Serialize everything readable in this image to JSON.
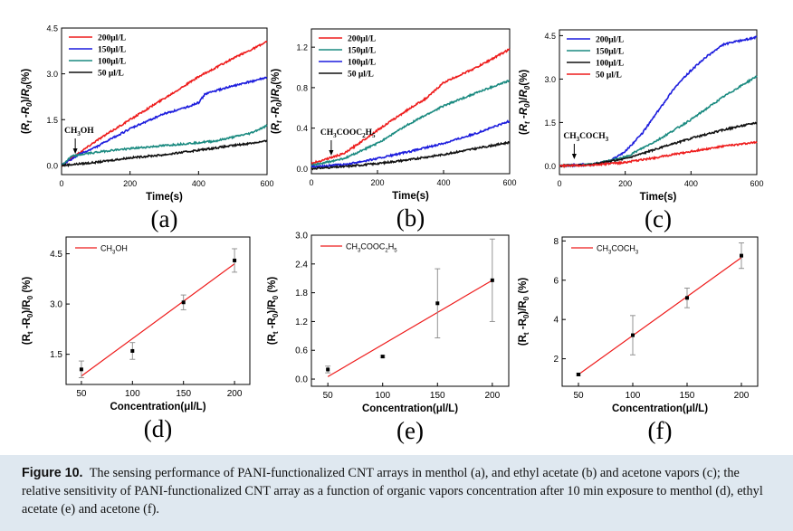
{
  "figure": {
    "caption_label": "Figure 10.",
    "caption_text": "The sensing performance of PANI-functionalized CNT arrays in menthol (a), and ethyl acetate (b) and acetone vapors (c); the relative sensitivity of PANI-functionalized CNT array as a function of organic vapors concentration after 10 min exposure to menthol (d), ethyl acetate (e) and acetone (f)."
  },
  "chart_data": [
    {
      "panel": "(a)",
      "type": "line",
      "xlabel": "Time(s)",
      "ylabel": "(Rt -R0)/R0(%)",
      "xlim": [
        0,
        600
      ],
      "ylim": [
        -0.3,
        4.5
      ],
      "xticks": [
        0,
        200,
        400,
        600
      ],
      "yticks": [
        0.0,
        1.5,
        3.0,
        4.5
      ],
      "annotation": {
        "text": "CH3OH",
        "x": 40,
        "y": 0.35
      },
      "legend": "top-left",
      "series": [
        {
          "name": "200μl/L",
          "color": "#ee1c1c",
          "x": [
            0,
            50,
            100,
            200,
            300,
            400,
            500,
            600
          ],
          "y": [
            0.0,
            0.4,
            0.8,
            1.5,
            2.2,
            2.9,
            3.5,
            4.05
          ]
        },
        {
          "name": "150μl/L",
          "color": "#1c1cdd",
          "x": [
            0,
            50,
            100,
            200,
            300,
            350,
            400,
            420,
            500,
            600
          ],
          "y": [
            0.0,
            0.35,
            0.6,
            1.2,
            1.7,
            1.85,
            2.05,
            2.35,
            2.6,
            2.88
          ]
        },
        {
          "name": "100μl/L",
          "color": "#1a8a80",
          "x": [
            0,
            30,
            80,
            150,
            300,
            450,
            550,
            600
          ],
          "y": [
            0.0,
            0.3,
            0.4,
            0.5,
            0.65,
            0.8,
            1.05,
            1.3
          ]
        },
        {
          "name": "50 μl/L",
          "color": "#111111",
          "x": [
            0,
            100,
            200,
            300,
            400,
            500,
            600
          ],
          "y": [
            0.0,
            0.1,
            0.25,
            0.35,
            0.5,
            0.65,
            0.8
          ]
        }
      ]
    },
    {
      "panel": "(b)",
      "type": "line",
      "xlabel": "Time(s)",
      "ylabel": "(Rt -R0)/R0(%)",
      "xlim": [
        0,
        600
      ],
      "ylim": [
        -0.05,
        1.38
      ],
      "xticks": [
        0,
        200,
        400,
        600
      ],
      "yticks": [
        0.0,
        0.4,
        0.8,
        1.2
      ],
      "annotation": {
        "text": "CH3COOC2H5",
        "x": 60,
        "y": 0.12
      },
      "legend": "top-left",
      "series": [
        {
          "name": "200μl/L",
          "color": "#ee1c1c",
          "x": [
            0,
            100,
            200,
            300,
            350,
            400,
            500,
            600
          ],
          "y": [
            0.05,
            0.15,
            0.38,
            0.6,
            0.7,
            0.85,
            1.0,
            1.18
          ]
        },
        {
          "name": "150μl/L",
          "color": "#1a8a80",
          "x": [
            0,
            100,
            200,
            300,
            400,
            500,
            600
          ],
          "y": [
            0.03,
            0.1,
            0.25,
            0.45,
            0.62,
            0.75,
            0.87
          ]
        },
        {
          "name": "100μl/L",
          "color": "#1c1cdd",
          "x": [
            0,
            100,
            200,
            300,
            400,
            500,
            600
          ],
          "y": [
            0.02,
            0.04,
            0.1,
            0.17,
            0.25,
            0.35,
            0.47
          ]
        },
        {
          "name": "50 μl/L",
          "color": "#111111",
          "x": [
            0,
            100,
            200,
            300,
            400,
            500,
            600
          ],
          "y": [
            0.0,
            0.02,
            0.05,
            0.09,
            0.14,
            0.2,
            0.26
          ]
        }
      ]
    },
    {
      "panel": "(c)",
      "type": "line",
      "xlabel": "Time(s)",
      "ylabel": "(Rt -R0)/R0(%)",
      "xlim": [
        0,
        600
      ],
      "ylim": [
        -0.3,
        4.7
      ],
      "xticks": [
        0,
        200,
        400,
        600
      ],
      "yticks": [
        0.0,
        1.5,
        3.0,
        4.5
      ],
      "annotation": {
        "text": "CH3COCH3",
        "x": 45,
        "y": 0.2
      },
      "legend": "top-left",
      "series": [
        {
          "name": "200μl/L",
          "color": "#1c1cdd",
          "x": [
            0,
            100,
            150,
            200,
            250,
            300,
            350,
            400,
            450,
            500,
            600
          ],
          "y": [
            0.0,
            0.05,
            0.15,
            0.5,
            1.1,
            1.9,
            2.7,
            3.3,
            3.8,
            4.2,
            4.45
          ]
        },
        {
          "name": "150μl/L",
          "color": "#1a8a80",
          "x": [
            0,
            100,
            200,
            300,
            400,
            500,
            600
          ],
          "y": [
            0.0,
            0.05,
            0.3,
            0.9,
            1.6,
            2.4,
            3.1
          ]
        },
        {
          "name": "100μl/L",
          "color": "#111111",
          "x": [
            0,
            100,
            200,
            300,
            400,
            500,
            600
          ],
          "y": [
            0.0,
            0.05,
            0.25,
            0.6,
            0.95,
            1.25,
            1.5
          ]
        },
        {
          "name": "50 μl/L",
          "color": "#ee1c1c",
          "x": [
            0,
            100,
            200,
            300,
            400,
            500,
            600
          ],
          "y": [
            0.0,
            0.03,
            0.12,
            0.3,
            0.5,
            0.68,
            0.82
          ]
        }
      ]
    },
    {
      "panel": "(d)",
      "type": "scatter",
      "xlabel": "Concentration(μl/L)",
      "ylabel": "(Rt -R0)/R0 (%)",
      "xlim": [
        35,
        215
      ],
      "ylim": [
        0.6,
        5.0
      ],
      "xticks": [
        50,
        100,
        150,
        200
      ],
      "yticks": [
        1.5,
        3.0,
        4.5
      ],
      "legend_entry": "CH3OH",
      "legend": "top-left",
      "points": [
        {
          "x": 50,
          "y": 1.05,
          "err": 0.25
        },
        {
          "x": 100,
          "y": 1.6,
          "err": 0.25
        },
        {
          "x": 150,
          "y": 3.05,
          "err": 0.22
        },
        {
          "x": 200,
          "y": 4.3,
          "err": 0.35
        }
      ],
      "fit": {
        "x": [
          50,
          200
        ],
        "y": [
          0.85,
          4.2
        ],
        "color": "#ee1c1c"
      }
    },
    {
      "panel": "(e)",
      "type": "scatter",
      "xlabel": "Concentration(μl/L)",
      "ylabel": "(Rt -R0)/R0 (%)",
      "xlim": [
        35,
        215
      ],
      "ylim": [
        -0.15,
        3.0
      ],
      "xticks": [
        50,
        100,
        150,
        200
      ],
      "yticks": [
        0.0,
        0.6,
        1.2,
        1.8,
        2.4,
        3.0
      ],
      "legend_entry": "CH3COOC2H5",
      "legend": "top-left",
      "points": [
        {
          "x": 50,
          "y": 0.2,
          "err": 0.07
        },
        {
          "x": 100,
          "y": 0.47,
          "err": 0.02
        },
        {
          "x": 150,
          "y": 1.58,
          "err": 0.72
        },
        {
          "x": 200,
          "y": 2.06,
          "err": 0.86
        }
      ],
      "fit": {
        "x": [
          50,
          200
        ],
        "y": [
          0.05,
          2.06
        ],
        "color": "#ee1c1c"
      }
    },
    {
      "panel": "(f)",
      "type": "scatter",
      "xlabel": "Concentration(μl/L)",
      "ylabel": "(Rt -R0)/R0 (%)",
      "xlim": [
        35,
        215
      ],
      "ylim": [
        0.6,
        8.2
      ],
      "xticks": [
        50,
        100,
        150,
        200
      ],
      "yticks": [
        2,
        4,
        6,
        8
      ],
      "legend_entry": "CH3COCH3",
      "legend": "top-left",
      "points": [
        {
          "x": 50,
          "y": 1.2,
          "err": 0.05
        },
        {
          "x": 100,
          "y": 3.2,
          "err": 1.0
        },
        {
          "x": 150,
          "y": 5.1,
          "err": 0.5
        },
        {
          "x": 200,
          "y": 7.25,
          "err": 0.65
        }
      ],
      "fit": {
        "x": [
          50,
          200
        ],
        "y": [
          1.2,
          7.15
        ],
        "color": "#ee1c1c"
      }
    }
  ]
}
